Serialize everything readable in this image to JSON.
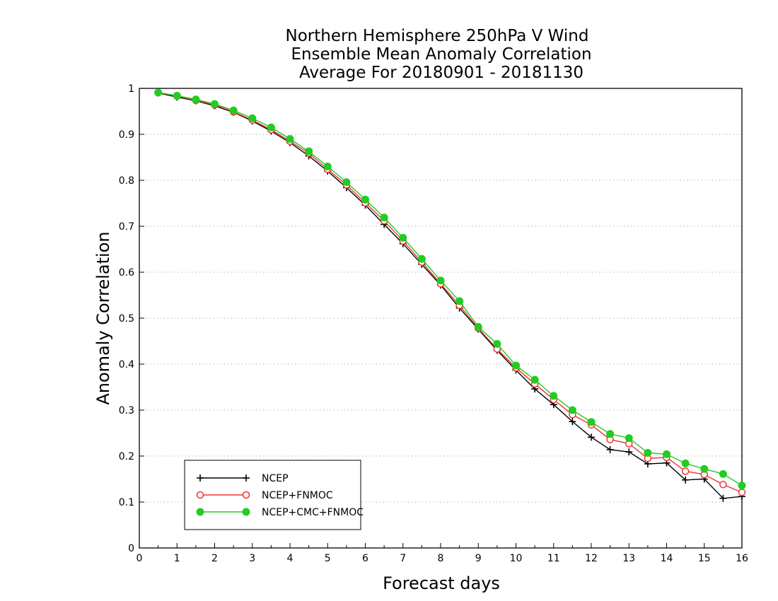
{
  "chart_data": {
    "type": "line",
    "title_lines": [
      "Northern Hemisphere 250hPa V Wind",
      "Ensemble Mean Anomaly Correlation",
      "Average For 20180901 - 20181130"
    ],
    "xlabel": "Forecast days",
    "ylabel": "Anomaly Correlation",
    "xlim": [
      0,
      16
    ],
    "ylim": [
      0,
      1
    ],
    "xticks": [
      0,
      1,
      2,
      3,
      4,
      5,
      6,
      7,
      8,
      9,
      10,
      11,
      12,
      13,
      14,
      15,
      16
    ],
    "yticks": [
      0,
      0.1,
      0.2,
      0.3,
      0.4,
      0.5,
      0.6,
      0.7,
      0.8,
      0.9,
      1
    ],
    "ytick_labels": [
      "0",
      "0.1",
      "0.2",
      "0.3",
      "0.4",
      "0.5",
      "0.6",
      "0.7",
      "0.8",
      "0.9",
      "1"
    ],
    "grid": "horizontal dotted",
    "legend_position": "bottom-left",
    "x": [
      0.5,
      1,
      1.5,
      2,
      2.5,
      3,
      3.5,
      4,
      4.5,
      5,
      5.5,
      6,
      6.5,
      7,
      7.5,
      8,
      8.5,
      9,
      9.5,
      10,
      10.5,
      11,
      11.5,
      12,
      12.5,
      13,
      13.5,
      14,
      14.5,
      15,
      15.5,
      16
    ],
    "series": [
      {
        "name": "NCEP",
        "color": "#000000",
        "marker": "plus",
        "values": [
          0.99,
          0.981,
          0.973,
          0.962,
          0.948,
          0.929,
          0.907,
          0.882,
          0.853,
          0.82,
          0.784,
          0.746,
          0.704,
          0.662,
          0.617,
          0.572,
          0.522,
          0.476,
          0.43,
          0.387,
          0.346,
          0.312,
          0.275,
          0.241,
          0.214,
          0.209,
          0.183,
          0.185,
          0.148,
          0.15,
          0.108,
          0.112
        ]
      },
      {
        "name": "NCEP+FNMOC",
        "color": "#ee3333",
        "marker": "open-circle",
        "values": [
          0.991,
          0.983,
          0.974,
          0.964,
          0.949,
          0.931,
          0.91,
          0.885,
          0.859,
          0.824,
          0.79,
          0.751,
          0.712,
          0.668,
          0.622,
          0.575,
          0.528,
          0.478,
          0.433,
          0.392,
          0.357,
          0.323,
          0.29,
          0.268,
          0.236,
          0.227,
          0.195,
          0.197,
          0.167,
          0.16,
          0.138,
          0.121
        ]
      },
      {
        "name": "NCEP+CMC+FNMOC",
        "color": "#22cc22",
        "marker": "filled-circle",
        "values": [
          0.991,
          0.984,
          0.976,
          0.966,
          0.952,
          0.935,
          0.915,
          0.89,
          0.863,
          0.83,
          0.796,
          0.758,
          0.719,
          0.675,
          0.629,
          0.582,
          0.537,
          0.481,
          0.444,
          0.397,
          0.366,
          0.331,
          0.3,
          0.274,
          0.248,
          0.239,
          0.207,
          0.204,
          0.184,
          0.172,
          0.161,
          0.136
        ]
      }
    ]
  }
}
